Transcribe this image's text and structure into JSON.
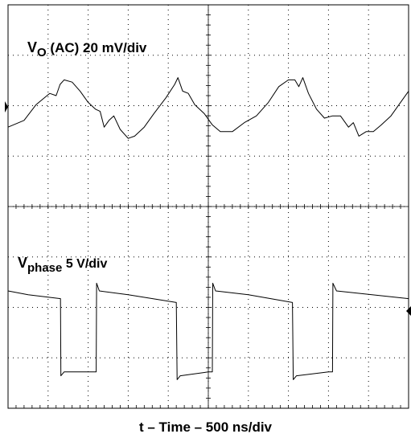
{
  "chart_data": {
    "type": "line",
    "title": "",
    "xlabel": "t – Time – 500 ns/div",
    "grid": true,
    "divisions": {
      "x": 10,
      "y": 8
    },
    "xlim": [
      0,
      5000
    ],
    "x_unit": "ns",
    "series": [
      {
        "name": "VO (AC) 20 mV/div",
        "label_main": "V",
        "label_sub": "O",
        "label_rest": " (AC) 20 mV/div",
        "y_unit": "mV",
        "x": [
          0,
          200,
          350,
          520,
          600,
          650,
          700,
          800,
          900,
          1000,
          1090,
          1150,
          1200,
          1260,
          1320,
          1400,
          1500,
          1580,
          1700,
          1820,
          1970,
          2080,
          2120,
          2180,
          2250,
          2330,
          2450,
          2550,
          2650,
          2800,
          2950,
          3100,
          3250,
          3380,
          3500,
          3580,
          3630,
          3680,
          3750,
          3850,
          3950,
          4050,
          4150,
          4250,
          4310,
          4380,
          4470,
          4560,
          4660,
          4780,
          4900,
          5000
        ],
        "y": [
          -9,
          -6,
          1,
          6,
          5,
          10,
          12,
          11,
          7,
          2,
          -1,
          -2,
          -9,
          -6,
          -4,
          -10,
          -14,
          -13,
          -9,
          -3,
          4,
          10,
          13,
          7,
          6,
          1,
          -3,
          -8,
          -11,
          -11,
          -7,
          -4,
          2,
          9,
          12,
          12,
          9,
          13,
          6,
          -1,
          -5,
          -4,
          -4,
          -9,
          -7,
          -13,
          -11,
          -11,
          -8,
          -4,
          2,
          7
        ]
      },
      {
        "name": "Vphase 5 V/div",
        "label_main": "V",
        "label_sub": "phase",
        "label_rest": " 5 V/div",
        "y_unit": "V",
        "x": [
          0,
          250,
          655,
          660,
          700,
          1000,
          1100,
          1105,
          1140,
          1500,
          2100,
          2110,
          2150,
          2500,
          2550,
          2555,
          2590,
          3000,
          3550,
          3560,
          3600,
          4000,
          4050,
          4055,
          4100,
          5000
        ],
        "y": [
          0,
          -0.5,
          -1,
          -11,
          -10.5,
          -10.5,
          -10.5,
          1,
          0,
          -0.5,
          -1.5,
          -11.5,
          -11,
          -10.5,
          -10.5,
          1,
          0,
          -0.5,
          -1.5,
          -11.5,
          -11,
          -10.5,
          -10.5,
          1,
          0,
          -1
        ]
      }
    ]
  }
}
